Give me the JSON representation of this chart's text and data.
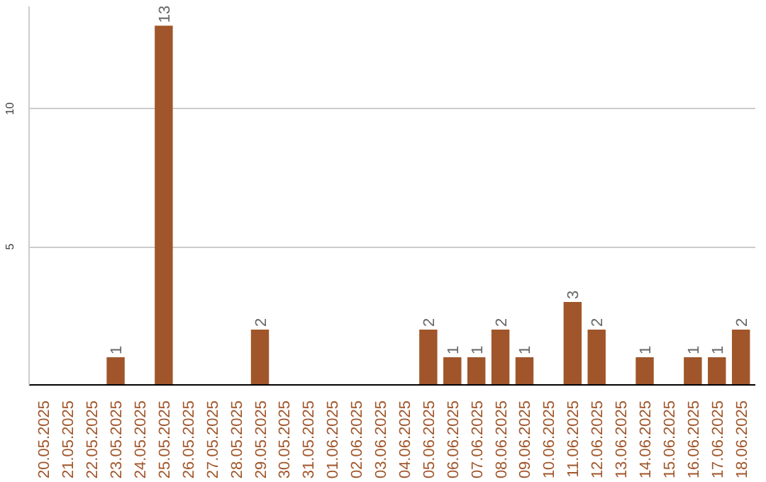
{
  "chart_data": {
    "type": "bar",
    "categories": [
      "20.05.2025",
      "21.05.2025",
      "22.05.2025",
      "23.05.2025",
      "24.05.2025",
      "25.05.2025",
      "26.05.2025",
      "27.05.2025",
      "28.05.2025",
      "29.05.2025",
      "30.05.2025",
      "31.05.2025",
      "01.06.2025",
      "02.06.2025",
      "03.06.2025",
      "04.06.2025",
      "05.06.2025",
      "06.06.2025",
      "07.06.2025",
      "08.06.2025",
      "09.06.2025",
      "10.06.2025",
      "11.06.2025",
      "12.06.2025",
      "13.06.2025",
      "14.06.2025",
      "15.06.2025",
      "16.06.2025",
      "17.06.2025",
      "18.06.2025"
    ],
    "values": [
      0,
      0,
      0,
      1,
      0,
      13,
      0,
      0,
      0,
      2,
      0,
      0,
      0,
      0,
      0,
      0,
      2,
      1,
      1,
      2,
      1,
      0,
      3,
      2,
      0,
      1,
      0,
      1,
      1,
      2
    ],
    "value_labels": [
      null,
      null,
      null,
      "1",
      null,
      "13",
      null,
      null,
      null,
      "2",
      null,
      null,
      null,
      null,
      null,
      null,
      "2",
      "1",
      "1",
      "2",
      "1",
      null,
      "3",
      "2",
      null,
      "1",
      null,
      "1",
      "1",
      "2"
    ],
    "color": "#a0562a",
    "ylim": [
      0,
      13.7
    ],
    "yticks": [
      5,
      10
    ],
    "grid": "y"
  }
}
